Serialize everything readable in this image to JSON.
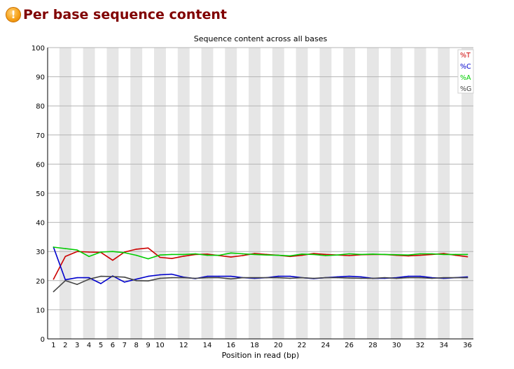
{
  "header": {
    "title": "Per base sequence content",
    "status_icon": "warning-icon",
    "status_color": "#f39c12"
  },
  "chart_data": {
    "type": "line",
    "title": "Sequence content across all bases",
    "xlabel": "Position in read (bp)",
    "ylabel": "",
    "ylim": [
      0,
      100
    ],
    "yticks": [
      0,
      10,
      20,
      30,
      40,
      50,
      60,
      70,
      80,
      90,
      100
    ],
    "xtick_labels": [
      "1",
      "2",
      "3",
      "4",
      "5",
      "6",
      "7",
      "8",
      "9",
      "10",
      "12",
      "14",
      "16",
      "18",
      "20",
      "22",
      "24",
      "26",
      "28",
      "30",
      "32",
      "34",
      "36"
    ],
    "x": [
      "1",
      "2",
      "3",
      "4",
      "5",
      "6",
      "7",
      "8",
      "9",
      "10",
      "11",
      "12",
      "13",
      "14",
      "15",
      "16",
      "17",
      "18",
      "19",
      "20",
      "21",
      "22",
      "23",
      "24",
      "25",
      "26",
      "27",
      "28",
      "29",
      "30",
      "31",
      "32",
      "33",
      "34",
      "35",
      "36"
    ],
    "legend_position": "top-right",
    "grid": true,
    "series": [
      {
        "name": "%T",
        "color": "#cc0000",
        "values": [
          20.5,
          28.3,
          30.0,
          29.8,
          29.7,
          27.0,
          29.8,
          30.8,
          31.2,
          28.0,
          27.6,
          28.4,
          29.0,
          29.1,
          28.6,
          28.1,
          28.6,
          29.3,
          29.0,
          28.7,
          28.3,
          28.7,
          29.3,
          29.0,
          28.8,
          28.6,
          28.9,
          29.0,
          29.0,
          28.7,
          28.5,
          28.7,
          29.0,
          29.3,
          28.7,
          28.2
        ]
      },
      {
        "name": "%C",
        "color": "#0000cc",
        "values": [
          31.5,
          20.3,
          21.0,
          21.0,
          19.0,
          21.6,
          19.5,
          20.5,
          21.5,
          22.0,
          22.2,
          21.2,
          20.7,
          21.5,
          21.5,
          21.5,
          21.0,
          20.8,
          21.0,
          21.5,
          21.5,
          21.0,
          20.7,
          21.0,
          21.3,
          21.5,
          21.3,
          20.8,
          20.8,
          21.0,
          21.5,
          21.5,
          21.0,
          20.8,
          21.0,
          21.3
        ]
      },
      {
        "name": "%A",
        "color": "#00cc00",
        "values": [
          31.5,
          31.0,
          30.5,
          28.3,
          29.8,
          30.0,
          29.6,
          28.7,
          27.5,
          28.8,
          29.0,
          29.0,
          29.2,
          28.7,
          28.7,
          29.5,
          29.2,
          29.0,
          28.8,
          28.7,
          28.5,
          29.1,
          29.0,
          28.6,
          28.8,
          29.2,
          29.0,
          29.1,
          29.0,
          28.9,
          28.8,
          29.2,
          29.2,
          29.0,
          29.0,
          29.0
        ]
      },
      {
        "name": "%G",
        "color": "#444444",
        "values": [
          16.2,
          20.0,
          18.7,
          20.5,
          21.5,
          21.4,
          21.2,
          20.0,
          19.9,
          20.8,
          21.0,
          21.0,
          20.8,
          21.0,
          21.0,
          20.6,
          21.0,
          21.0,
          21.0,
          21.0,
          20.8,
          21.0,
          20.8,
          21.0,
          21.0,
          20.9,
          20.8,
          20.8,
          21.0,
          20.8,
          21.0,
          21.0,
          20.8,
          21.0,
          21.0,
          21.0
        ]
      }
    ]
  }
}
